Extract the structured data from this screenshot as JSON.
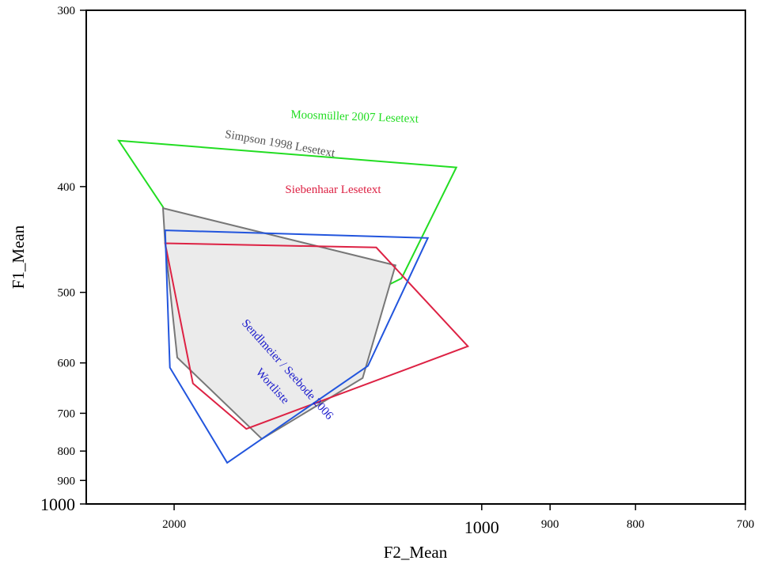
{
  "chart_data": {
    "type": "scatter",
    "title": "",
    "xlabel": "F2_Mean",
    "ylabel": "F1_Mean",
    "xscale": "reciprocal-reversed",
    "yscale": "reciprocal-reversed",
    "xlim": [
      2800,
      700
    ],
    "ylim": [
      300,
      1000
    ],
    "x_ticks": [
      {
        "value": 2000,
        "label": "2000"
      },
      {
        "value": 1000,
        "label": "1000"
      },
      {
        "value": 900,
        "label": "900"
      },
      {
        "value": 800,
        "label": "800"
      },
      {
        "value": 700,
        "label": "700"
      }
    ],
    "y_ticks": [
      {
        "value": 300,
        "label": "300"
      },
      {
        "value": 400,
        "label": "400"
      },
      {
        "value": 500,
        "label": "500"
      },
      {
        "value": 600,
        "label": "600"
      },
      {
        "value": 700,
        "label": "700"
      },
      {
        "value": 800,
        "label": "800"
      },
      {
        "value": 900,
        "label": "900"
      },
      {
        "value": 1000,
        "label": "1000"
      }
    ],
    "grid": false,
    "legend": "none",
    "series": [
      {
        "name": "Moosmüller 2007 Lesetext",
        "color": "#22dd22",
        "fill": "none",
        "points": [
          [
            2440,
            368
          ],
          [
            1043,
            386
          ],
          [
            1150,
            484
          ],
          [
            1590,
            582
          ],
          [
            2015,
            440
          ],
          [
            2075,
            416
          ]
        ]
      },
      {
        "name": "Simpson 1998 Lesetext",
        "color": "#777777",
        "fill": "#ebebeb",
        "points": [
          [
            2075,
            417
          ],
          [
            1163,
            470
          ],
          [
            1240,
            627
          ],
          [
            1556,
            765
          ],
          [
            1980,
            591
          ],
          [
            2060,
            448
          ]
        ]
      },
      {
        "name": "Siebenhaar Lesetext",
        "color": "#dd2244",
        "fill": "none",
        "points": [
          [
            2060,
            448
          ],
          [
            1207,
            452
          ],
          [
            1023,
            573
          ],
          [
            1620,
            738
          ],
          [
            1885,
            637
          ]
        ]
      },
      {
        "name": "Sendlmeier / Seebode 2006 Wortliste",
        "color": "#2255dd",
        "fill": "none",
        "points": [
          [
            2060,
            436
          ],
          [
            1096,
            443
          ],
          [
            1227,
            605
          ],
          [
            1706,
            837
          ],
          [
            2028,
            608
          ]
        ]
      }
    ],
    "annotations": [
      {
        "text": "Moosmüller 2007 Lesetext",
        "series": 0
      },
      {
        "text": "Simpson 1998 Lesetext",
        "series": 1
      },
      {
        "text": "Siebenhaar Lesetext",
        "series": 2
      },
      {
        "text": "Sendlmeier / Seebode 2006",
        "series": 3
      },
      {
        "text": "Wortliste",
        "series": 3
      }
    ]
  }
}
